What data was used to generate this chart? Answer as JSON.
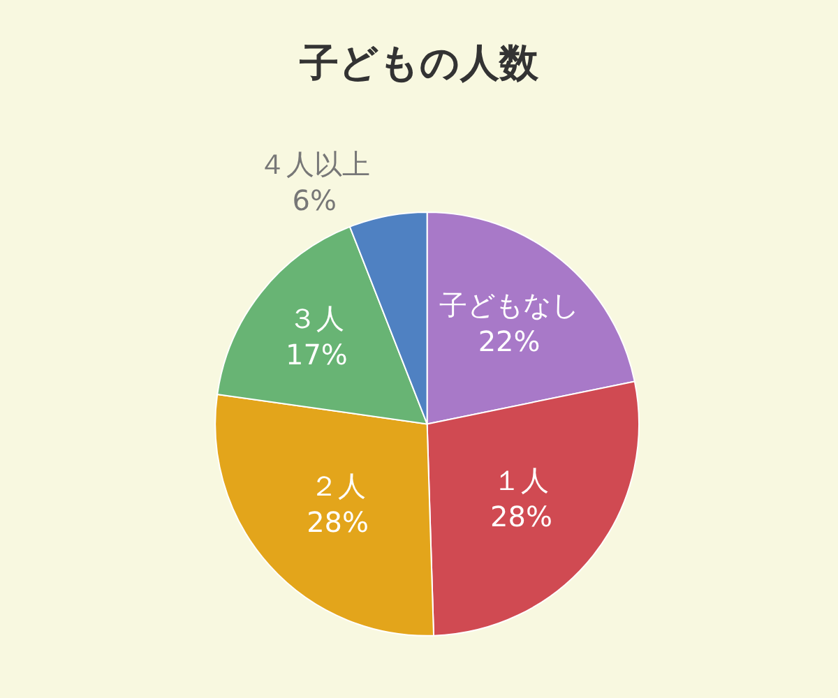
{
  "chart_data": {
    "type": "pie",
    "title": "子どもの人数",
    "categories": [
      "子どもなし",
      "１人",
      "２人",
      "３人",
      "４人以上"
    ],
    "values": [
      22,
      28,
      28,
      17,
      6
    ],
    "value_labels": [
      "22%",
      "28%",
      "28%",
      "17%",
      "6%"
    ],
    "colors": [
      "#a879c8",
      "#d04a52",
      "#e3a51b",
      "#68b474",
      "#4f81c2"
    ],
    "legend": false
  }
}
